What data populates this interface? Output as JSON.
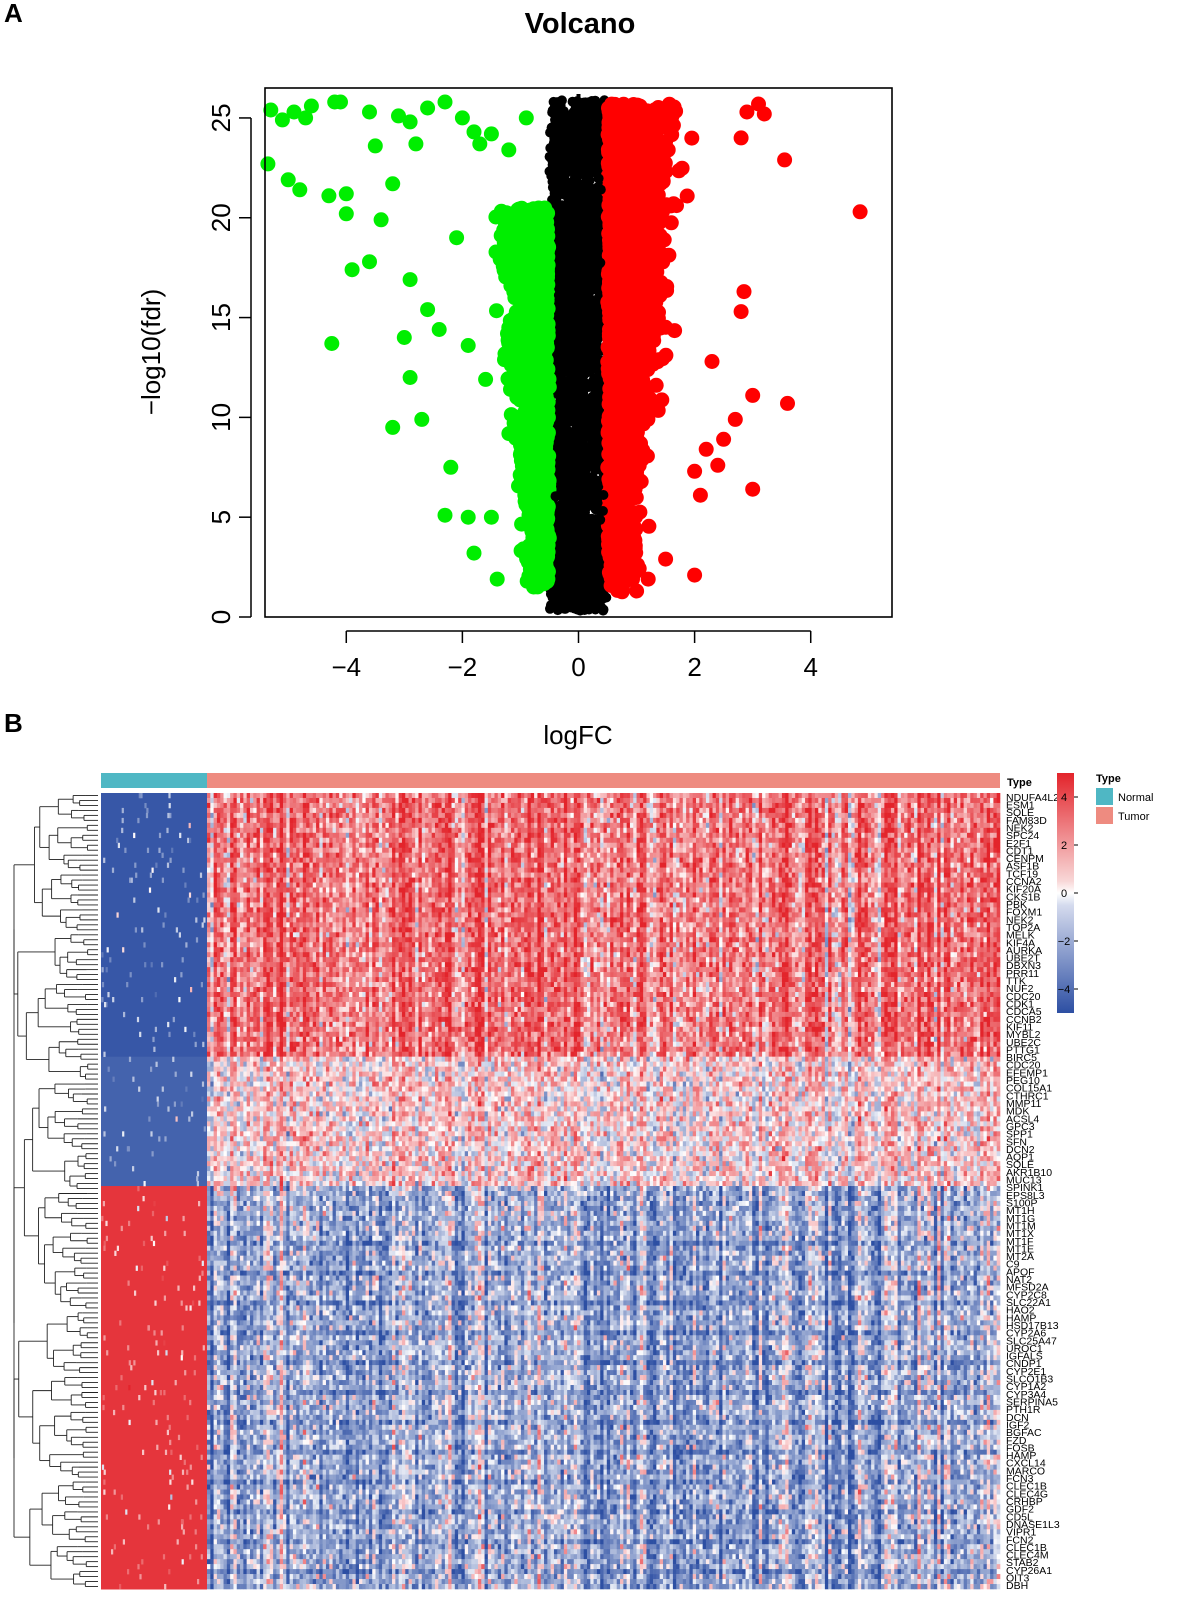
{
  "panels": {
    "a": "A",
    "b": "B"
  },
  "colors": {
    "up": "#ff0000",
    "down": "#00ee00",
    "ns": "#000000",
    "normal": "#4fb7c4",
    "tumor": "#ee8b80",
    "heat_low": "#2d4fa3",
    "heat_mid": "#ffffff",
    "heat_high": "#e3242b"
  },
  "chart_data": [
    {
      "type": "scatter",
      "title": "Volcano",
      "xlabel": "logFC",
      "ylabel": "−log10(fdr)",
      "xlim": [
        -5.4,
        5.4
      ],
      "ylim": [
        0,
        26.5
      ],
      "xticks": [
        -4,
        -2,
        0,
        2,
        4
      ],
      "xtick_labels": [
        "−4",
        "−2",
        "0",
        "2",
        "4"
      ],
      "yticks": [
        0,
        5,
        10,
        15,
        20,
        25
      ],
      "ytick_labels": [
        "0",
        "5",
        "10",
        "15",
        "20",
        "25"
      ],
      "cutoff_logfc": 0.5,
      "series": [
        {
          "name": "down",
          "points": [
            [
              -5.3,
              25.4
            ],
            [
              -5.1,
              24.9
            ],
            [
              -4.9,
              25.3
            ],
            [
              -4.6,
              25.6
            ],
            [
              -4.7,
              25.0
            ],
            [
              -4.1,
              25.8
            ],
            [
              -4.2,
              25.8
            ],
            [
              -5.35,
              22.7
            ],
            [
              -5.0,
              21.9
            ],
            [
              -4.8,
              21.4
            ],
            [
              -4.3,
              21.1
            ],
            [
              -4.0,
              21.2
            ],
            [
              -3.9,
              17.4
            ],
            [
              -4.25,
              13.7
            ],
            [
              -4.0,
              20.2
            ],
            [
              -3.6,
              17.8
            ],
            [
              -3.4,
              19.9
            ],
            [
              -3.2,
              21.7
            ],
            [
              -3.5,
              23.6
            ],
            [
              -3.6,
              25.3
            ],
            [
              -3.1,
              25.1
            ],
            [
              -2.9,
              24.8
            ],
            [
              -2.8,
              23.7
            ],
            [
              -2.6,
              25.5
            ],
            [
              -2.3,
              25.8
            ],
            [
              -2.0,
              25.0
            ],
            [
              -1.8,
              24.3
            ],
            [
              -1.7,
              23.7
            ],
            [
              -1.5,
              24.2
            ],
            [
              -1.2,
              23.4
            ],
            [
              -0.9,
              25.0
            ],
            [
              -2.9,
              16.9
            ],
            [
              -2.6,
              15.4
            ],
            [
              -3.0,
              14.0
            ],
            [
              -2.9,
              12.0
            ],
            [
              -3.2,
              9.5
            ],
            [
              -2.7,
              9.9
            ],
            [
              -2.2,
              7.5
            ],
            [
              -2.3,
              5.1
            ],
            [
              -1.9,
              5.0
            ],
            [
              -1.5,
              5.0
            ],
            [
              -1.8,
              3.2
            ],
            [
              -1.4,
              1.9
            ],
            [
              -2.1,
              19.0
            ],
            [
              -1.9,
              13.6
            ],
            [
              -1.6,
              11.9
            ],
            [
              -2.4,
              14.4
            ]
          ]
        },
        {
          "name": "up",
          "points": [
            [
              3.1,
              25.7
            ],
            [
              3.2,
              25.2
            ],
            [
              2.9,
              25.3
            ],
            [
              2.8,
              24.0
            ],
            [
              3.55,
              22.9
            ],
            [
              4.85,
              20.3
            ],
            [
              2.85,
              16.3
            ],
            [
              2.8,
              15.3
            ],
            [
              2.3,
              12.8
            ],
            [
              3.0,
              11.1
            ],
            [
              3.6,
              10.7
            ],
            [
              2.7,
              9.9
            ],
            [
              2.5,
              8.9
            ],
            [
              2.2,
              8.4
            ],
            [
              2.4,
              7.6
            ],
            [
              3.0,
              6.4
            ],
            [
              2.0,
              7.3
            ],
            [
              2.1,
              6.1
            ],
            [
              1.5,
              2.9
            ],
            [
              1.2,
              1.9
            ],
            [
              1.0,
              1.3
            ],
            [
              2.0,
              2.1
            ]
          ]
        }
      ]
    },
    {
      "type": "heatmap",
      "annotation_label": "Type",
      "legend_title": "Type",
      "groups": [
        {
          "name": "Normal",
          "count": 50
        },
        {
          "name": "Tumor",
          "count": 374
        }
      ],
      "color_scale": {
        "min": -5,
        "max": 5,
        "ticks": [
          4,
          2,
          0,
          -2,
          -4
        ],
        "tick_labels": [
          "4",
          "2",
          "0",
          "−2",
          "−4"
        ]
      },
      "row_blocks": [
        {
          "start": 0,
          "end": 53,
          "normal_level": -4.2,
          "tumor_level": 2.4
        },
        {
          "start": 53,
          "end": 79,
          "normal_level": -3.8,
          "tumor_level": 0.6
        },
        {
          "start": 79,
          "end": 160,
          "normal_level": 4.0,
          "tumor_level": -1.4
        }
      ],
      "genes": [
        "NDUFA4L2",
        "ESM1",
        "SQLE",
        "FAM83D",
        "NEK2",
        "SPC24",
        "E2F1",
        "CDT1",
        "CENPM",
        "ASF1B",
        "TCF19",
        "CCNA2",
        "KIF20A",
        "CKS1B",
        "PBK",
        "FOXM1",
        "NEK2",
        "TOP2A",
        "MELK",
        "KIF4A",
        "AURKA",
        "UBE2T",
        "DBXN3",
        "PRR11",
        "TTK",
        "NUF2",
        "CDC20",
        "CDK1",
        "CDCA5",
        "CCNB2",
        "KIF11",
        "MYBL2",
        "UBE2C",
        "PTTG1",
        "BIRC5",
        "CDC20",
        "EFEMP1",
        "PEG10",
        "COL15A1",
        "CTHRC1",
        "MMP11",
        "MDK",
        "ACSL4",
        "GPC3",
        "SPP1",
        "SFN",
        "DCN2",
        "AQP1",
        "SQLE",
        "AKR1B10",
        "MUC13",
        "SPINK1",
        "EPS8L3",
        "S100P",
        "MT1H",
        "MT1G",
        "MT1M",
        "MT1X",
        "MT1F",
        "MT1E",
        "MT2A",
        "C9",
        "APOF",
        "NAT2",
        "MFSD2A",
        "CYP2C8",
        "SLC22A1",
        "HAO2",
        "HAMP",
        "HSD17B13",
        "CYP2A6",
        "SLC25A47",
        "UROC1",
        "IGFALS",
        "CNDP1",
        "CYP2E1",
        "SLCO1B3",
        "CYP1A2",
        "CYP3A4",
        "SERPINA5",
        "PTH1R",
        "DCN",
        "IGF2",
        "BGFAC",
        "FZD",
        "FOSB",
        "HAMP",
        "CXCL14",
        "MARCO",
        "FCN3",
        "CLEC1B",
        "CLEC4G",
        "CRHBP",
        "GDF2",
        "CD5L",
        "DNASE1L3",
        "VIPR1",
        "FCN2",
        "CLEC1B",
        "CLEC4M",
        "STAB2",
        "CYP26A1",
        "OIT3",
        "DBH"
      ]
    }
  ]
}
